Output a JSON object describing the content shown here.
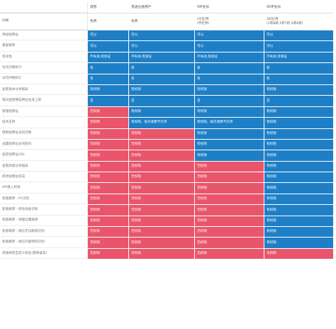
{
  "columns": [
    "",
    "游客",
    "普通注册用户",
    "VIP会员",
    "SVIP会员"
  ],
  "price": {
    "label": "价格",
    "values": [
      [
        "免费"
      ],
      [
        "免费"
      ],
      [
        "15元/月",
        "(不打折)"
      ],
      [
        "30元/月",
        "(1年8折,2年7折,3年6折)"
      ]
    ]
  },
  "colors": {
    "blue": "#1e7fc6",
    "red": "#e9556b"
  },
  "rows": [
    {
      "label": "添加短网址",
      "values": [
        "可以",
        "可以",
        "可以",
        "可以"
      ],
      "colors": [
        "blue",
        "blue",
        "blue",
        "blue"
      ]
    },
    {
      "label": "重复跳转",
      "values": [
        "可以",
        "可以",
        "可以",
        "可以"
      ],
      "colors": [
        "blue",
        "blue",
        "blue",
        "blue"
      ]
    },
    {
      "label": "有效性",
      "values": [
        "不失效,有保证",
        "不失效,有保证",
        "不失效,有保证",
        "不失效,有保证"
      ],
      "colors": [
        "blue",
        "blue",
        "blue",
        "blue"
      ]
    },
    {
      "label": "访问次数统计",
      "values": [
        "有",
        "有",
        "有",
        "有"
      ],
      "colors": [
        "blue",
        "blue",
        "blue",
        "blue"
      ]
    },
    {
      "label": "访问IP数统计",
      "values": [
        "有",
        "有",
        "有",
        "有"
      ],
      "colors": [
        "blue",
        "blue",
        "blue",
        "blue"
      ]
    },
    {
      "label": "查看基本分析报表",
      "values": [
        "有权限",
        "有权限",
        "有权限",
        "有权限"
      ],
      "colors": [
        "blue",
        "blue",
        "blue",
        "blue"
      ]
    },
    {
      "label": "每日查回哪些网址生成上限",
      "values": [
        "百",
        "百",
        "百",
        "百"
      ],
      "colors": [
        "blue",
        "blue",
        "blue",
        "blue"
      ]
    },
    {
      "label": "管理短网址",
      "values": [
        "无权限",
        "有权限",
        "有权限",
        "有权限"
      ],
      "colors": [
        "red",
        "blue",
        "blue",
        "blue"
      ]
    },
    {
      "label": "技术支持",
      "values": [
        "无权限",
        "有权限，按次收费不打折",
        "有权限，按次收费不打折",
        "有权限"
      ],
      "colors": [
        "red",
        "blue",
        "blue",
        "blue"
      ]
    },
    {
      "label": "限制短网址访问次数",
      "values": [
        "无权限",
        "无权限",
        "有权限",
        "有权限"
      ],
      "colors": [
        "red",
        "red",
        "blue",
        "blue"
      ]
    },
    {
      "label": "设置短网址访问密码",
      "values": [
        "无权限",
        "无权限",
        "有权限",
        "有权限"
      ],
      "colors": [
        "red",
        "red",
        "blue",
        "blue"
      ]
    },
    {
      "label": "指定短网址URL",
      "values": [
        "无权限",
        "无权限",
        "有权限",
        "有权限"
      ],
      "colors": [
        "red",
        "red",
        "blue",
        "blue"
      ]
    },
    {
      "label": "查看高级分析报表",
      "values": [
        "无权限",
        "无权限",
        "无权限",
        "有权限"
      ],
      "colors": [
        "red",
        "red",
        "red",
        "blue"
      ]
    },
    {
      "label": "修改短网址指向",
      "values": [
        "无权限",
        "无权限",
        "无权限",
        "有权限"
      ],
      "colors": [
        "red",
        "red",
        "red",
        "blue"
      ]
    },
    {
      "label": "API接入权限",
      "values": [
        "无权限",
        "无权限",
        "无权限",
        "有权限"
      ],
      "colors": [
        "red",
        "red",
        "red",
        "blue"
      ]
    },
    {
      "label": "智能跳转 - PC识别",
      "values": [
        "无权限",
        "无权限",
        "无权限",
        "有权限"
      ],
      "colors": [
        "red",
        "red",
        "red",
        "blue"
      ]
    },
    {
      "label": "智能跳转 - 移动设备识别",
      "values": [
        "无权限",
        "无权限",
        "无权限",
        "有权限"
      ],
      "colors": [
        "red",
        "red",
        "red",
        "blue"
      ]
    },
    {
      "label": "智能跳转 - 地理位置跳转",
      "values": [
        "无权限",
        "无权限",
        "无权限",
        "有权限"
      ],
      "colors": [
        "red",
        "red",
        "red",
        "blue"
      ]
    },
    {
      "label": "智能跳转 - 微信无法跳转识别",
      "values": [
        "无权限",
        "无权限",
        "无权限",
        "有权限"
      ],
      "colors": [
        "red",
        "red",
        "red",
        "blue"
      ]
    },
    {
      "label": "智能跳转 - 微信内部网页识别",
      "values": [
        "无权限",
        "无权限",
        "无权限",
        "有权限"
      ],
      "colors": [
        "red",
        "red",
        "red",
        "blue"
      ]
    },
    {
      "label": "单独绑定自定义域名(需要备案)",
      "values": [
        "无权限",
        "无权限",
        "无权限",
        "无权限"
      ],
      "colors": [
        "red",
        "red",
        "red",
        "red"
      ]
    }
  ]
}
